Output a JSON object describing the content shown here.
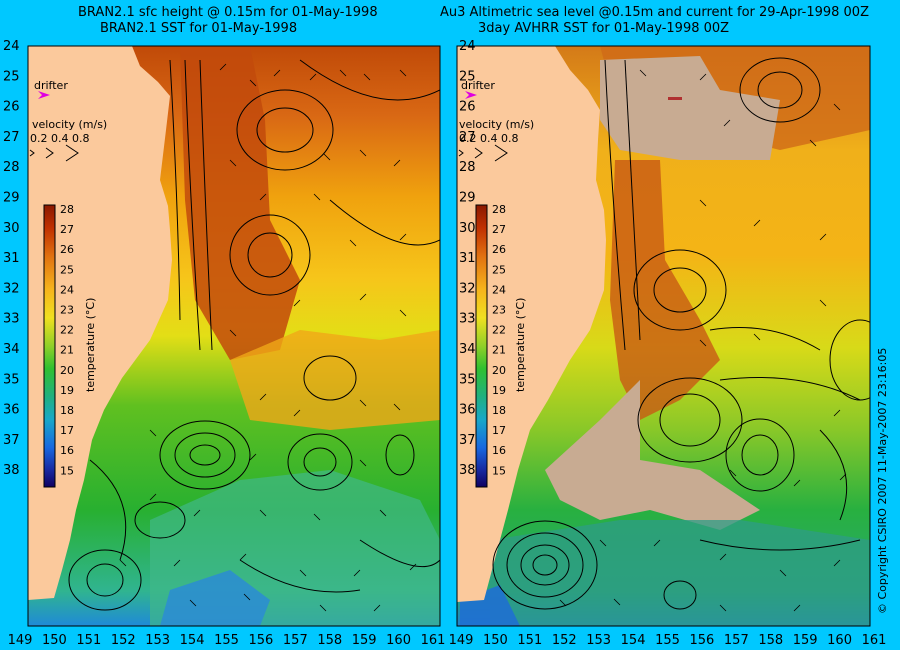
{
  "titles": {
    "left_line1": "BRAN2.1 sfc height @ 0.15m for 01-May-1998",
    "left_line2": "BRAN2.1 SST for 01-May-1998",
    "right_line1": "Au3 Altimetric sea level  @0.15m and current for 29-Apr-1998 00Z",
    "right_line2": "3day AVHRR SST for 01-May-1998 00Z"
  },
  "lat_labels": [
    "24",
    "25",
    "26",
    "27",
    "28",
    "29",
    "30",
    "31",
    "32",
    "33",
    "34",
    "35",
    "36",
    "37",
    "38"
  ],
  "lon_labels": [
    "149",
    "150",
    "151",
    "152",
    "153",
    "154",
    "155",
    "156",
    "157",
    "158",
    "159",
    "160",
    "161"
  ],
  "drifter_label": "drifter",
  "velocity": {
    "title": "velocity (m/s)",
    "scale": "0.2 0.4 0.8"
  },
  "colorbar": {
    "ticks": [
      "28",
      "27",
      "26",
      "25",
      "24",
      "23",
      "22",
      "21",
      "20",
      "19",
      "18",
      "17",
      "16",
      "15"
    ],
    "label": "temperature (°C)"
  },
  "copyright": "© Copyright CSIRO 2007  11-May-2007 23:16:05",
  "colors": {
    "background": "#00c8ff",
    "land": "#fbc99c",
    "drifter": "#e000e0"
  }
}
